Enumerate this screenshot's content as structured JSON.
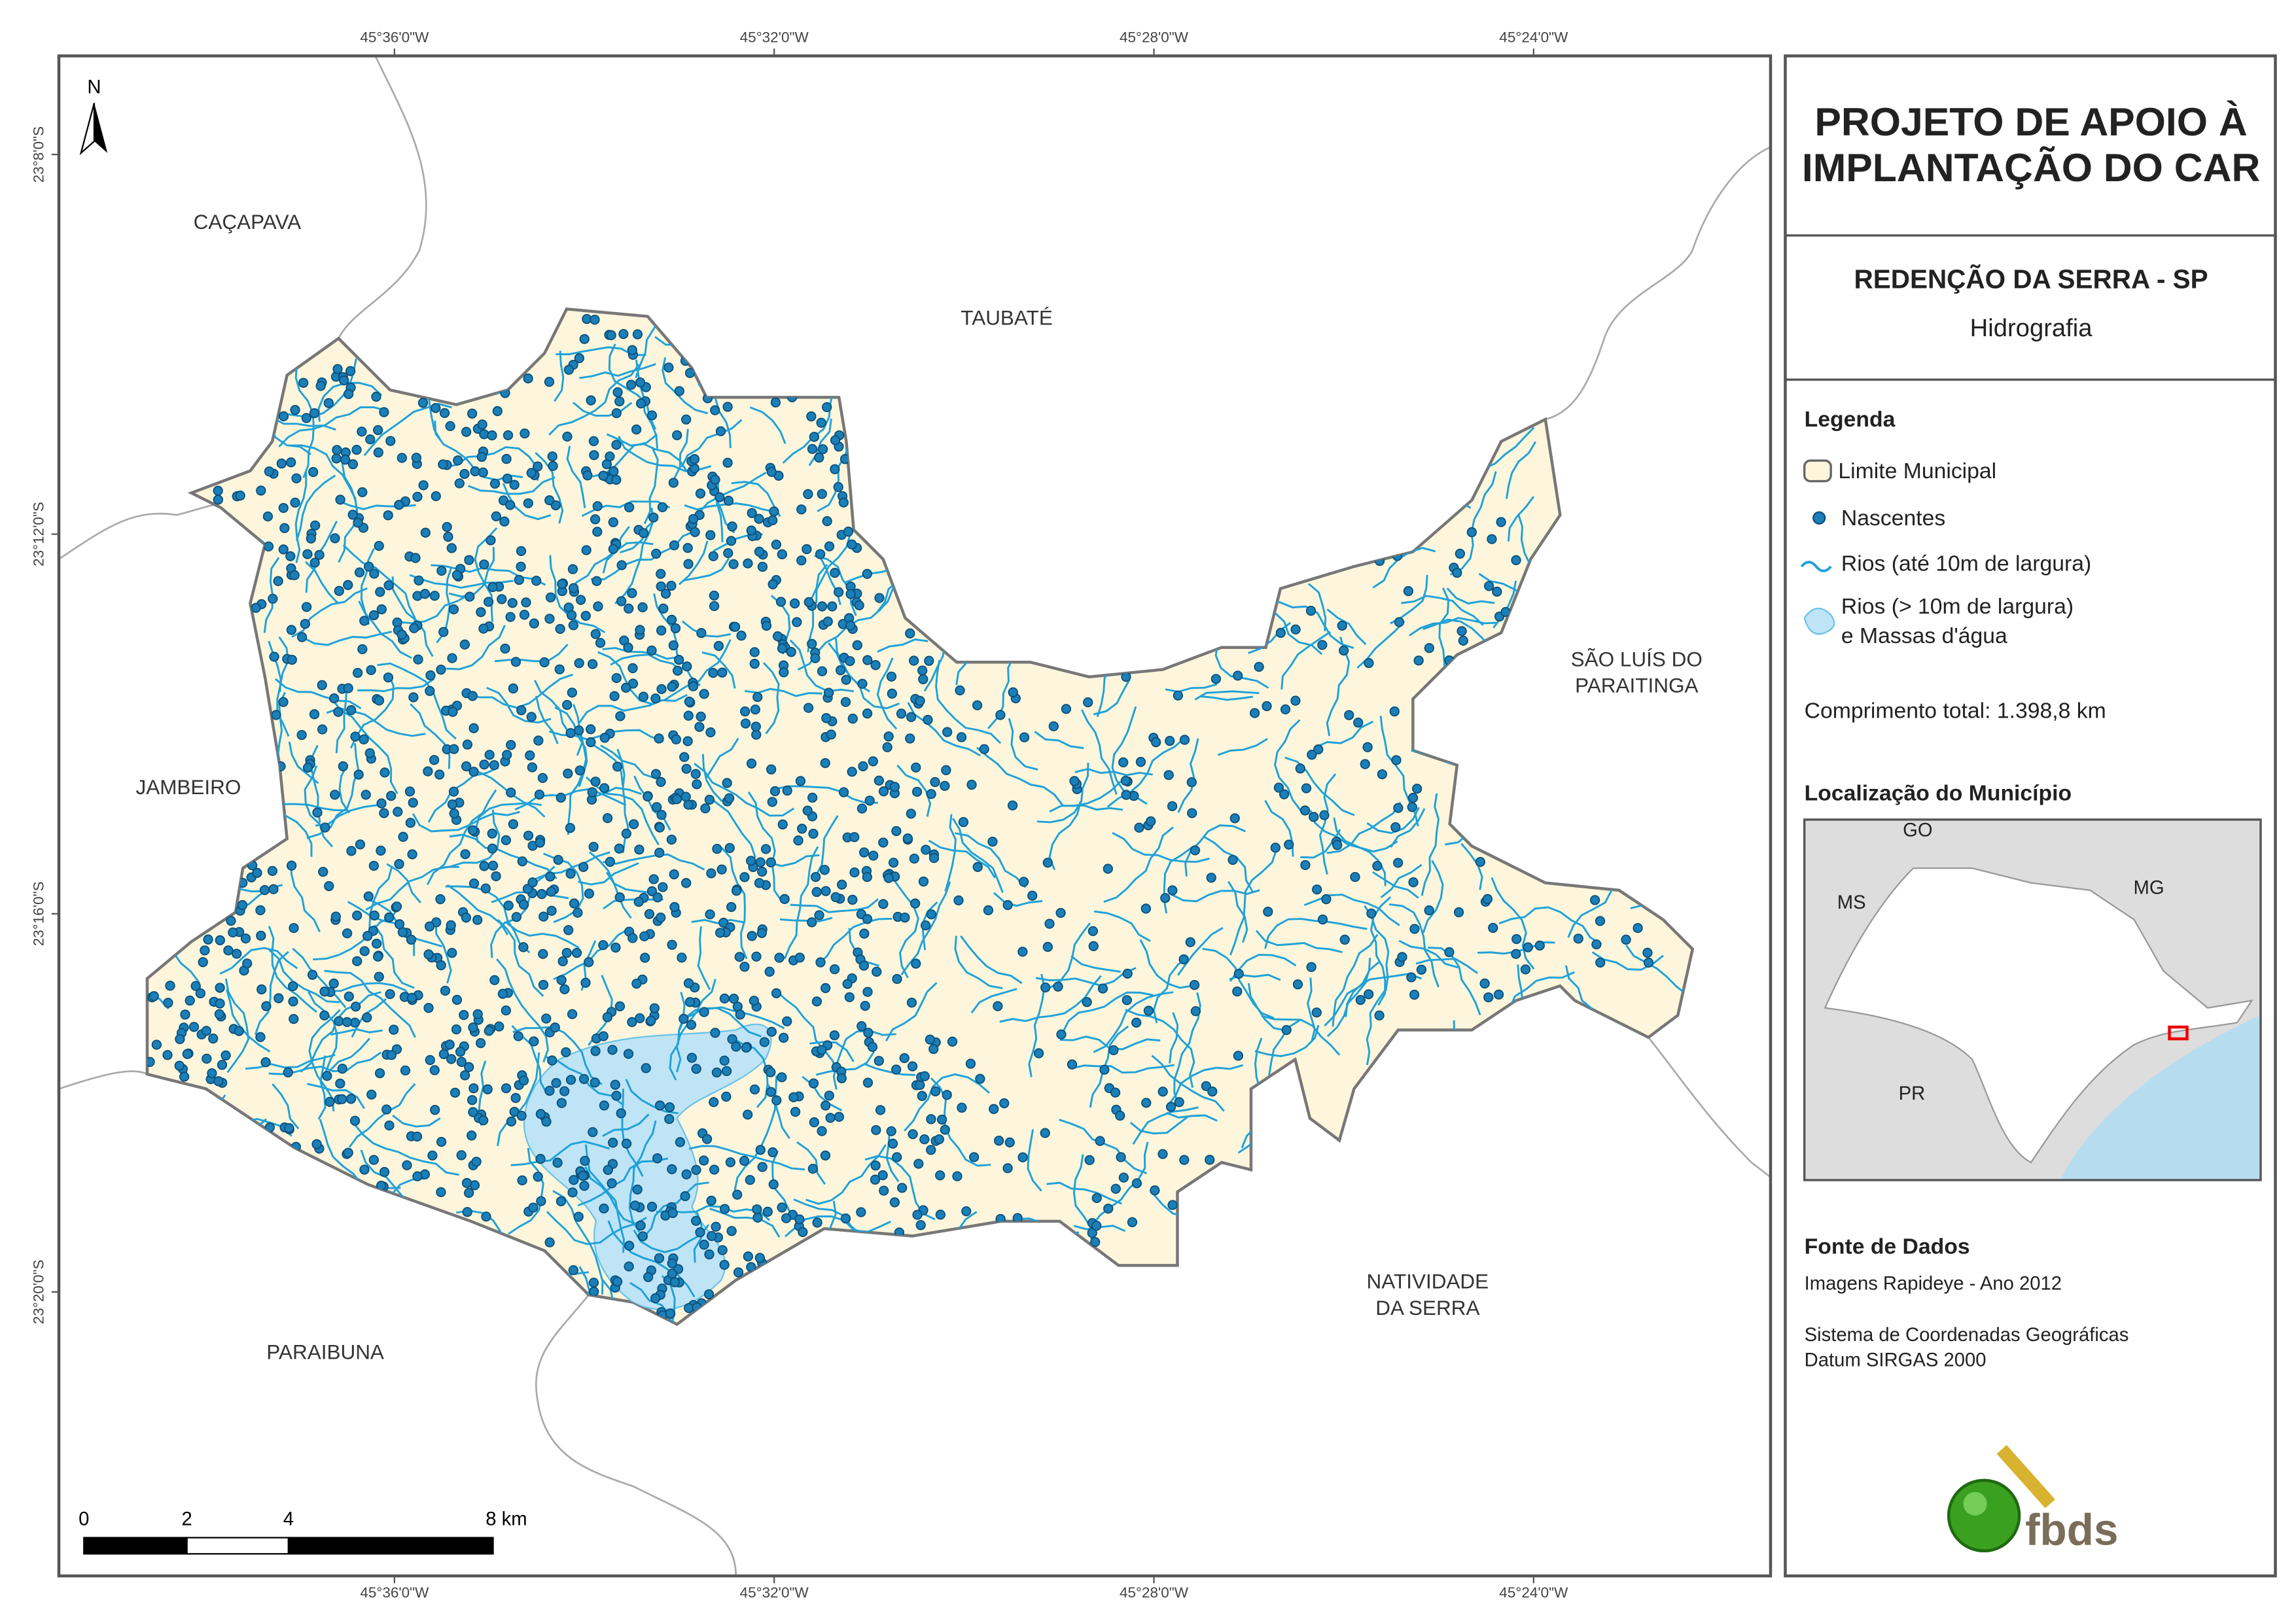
{
  "map": {
    "north": "N",
    "coords_top": [
      "45°36'0\"W",
      "45°32'0\"W",
      "45°28'0\"W",
      "45°24'0\"W"
    ],
    "coords_bottom": [
      "45°36'0\"W",
      "45°32'0\"W",
      "45°28'0\"W",
      "45°24'0\"W"
    ],
    "coords_left": [
      "23°8'0\"S",
      "23°12'0\"S",
      "23°16'0\"S",
      "23°20'0\"S"
    ],
    "places": {
      "cacapava": "CAÇAPAVA",
      "taubate": "TAUBATÉ",
      "jambeiro": "JAMBEIRO",
      "paraibuna": "PARAIBUNA",
      "sao_luis": [
        "SÃO LUÍS DO",
        "PARAITINGA"
      ],
      "natividade": [
        "NATIVIDADE",
        "DA SERRA"
      ]
    },
    "scale": [
      "0",
      "2",
      "4",
      "8 km"
    ]
  },
  "panel": {
    "title": [
      "PROJETO DE APOIO À",
      "IMPLANTAÇÃO DO CAR"
    ],
    "municipality": "REDENÇÃO DA SERRA - SP",
    "theme": "Hidrografia",
    "legend_title": "Legenda",
    "legend": [
      "Limite Municipal",
      "Nascentes",
      "Rios (até 10m de largura)",
      "Rios (> 10m de largura)",
      "e Massas d'água"
    ],
    "total_length": "Comprimento total:  1.398,8 km",
    "location_title": "Localização do Município",
    "inset_labels": [
      "GO",
      "MS",
      "MG",
      "PR"
    ],
    "source_title": "Fonte de Dados",
    "source": [
      "Imagens Rapideye - Ano 2012",
      "Sistema de Coordenadas Geográficas",
      "Datum SIRGAS 2000"
    ],
    "logo": "fbds"
  }
}
